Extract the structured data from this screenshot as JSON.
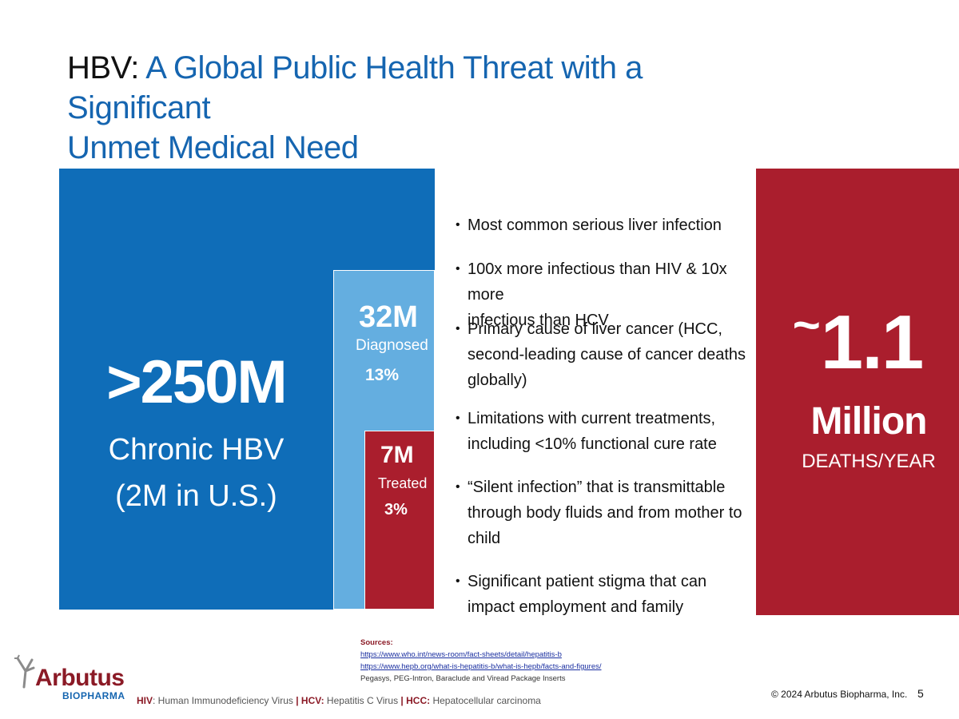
{
  "title": {
    "prefix": "HBV:",
    "line1": "A Global Public Health Threat with a Significant",
    "line2": "Unmet Medical Need"
  },
  "chronic": {
    "value": ">250M",
    "label": "Chronic HBV",
    "sub": "(2M in U.S.)"
  },
  "diagnosed": {
    "value": "32M",
    "label": "Diagnosed",
    "percent": "13%"
  },
  "treated": {
    "value": "7M",
    "label": "Treated",
    "percent": "3%"
  },
  "deaths": {
    "tilde": "~",
    "value": "1.1",
    "unit": "Million",
    "caption": "DEATHS/YEAR"
  },
  "bullets": [
    {
      "bullet": "•",
      "text": "Most common serious liver infection"
    },
    {
      "bullet": "•",
      "line1": "100x more infectious than HIV & 10x more",
      "line2": "infectious than HCV"
    },
    {
      "bullet": "•",
      "line1": "Primary cause of liver cancer (HCC,",
      "line2": "second-leading cause of cancer deaths",
      "line3": "globally)"
    },
    {
      "bullet": "•",
      "line1": "Limitations with current treatments,",
      "line2": "including <10% functional cure rate"
    },
    {
      "bullet": "•",
      "line1": "“Silent infection” that is transmittable",
      "line2": "through body fluids and from mother to",
      "line3": "child"
    },
    {
      "bullet": "•",
      "line1": "Significant patient stigma that can",
      "line2": "impact employment and family"
    }
  ],
  "sources": {
    "header": "Sources:",
    "links": [
      "https://www.who.int/news-room/fact-sheets/detail/hepatitis-b",
      "https://www.hepb.org/what-is-hepatitis-b/what-is-hepb/facts-and-figures/"
    ],
    "note": "Pegasys, PEG-Intron, Baraclude and Viread Package Inserts"
  },
  "logo": {
    "name": "Arbutus",
    "sub": "BIOPHARMA"
  },
  "footer": {
    "abbr": [
      {
        "key": "HIV",
        "value": ": Human Immunodeficiency Virus"
      },
      {
        "key": "HCV:",
        "value": " Hepatitis C Virus"
      },
      {
        "key": "HCC:",
        "value": " Hepatocellular carcinoma"
      }
    ],
    "separator": "|",
    "copyright": "© 2024 Arbutus Biopharma, Inc.",
    "page": "5"
  },
  "colors": {
    "blue": "#0f6db8",
    "lightblue": "#64aee0",
    "red": "#aa1e2d",
    "titleBlue": "#1565b0"
  }
}
